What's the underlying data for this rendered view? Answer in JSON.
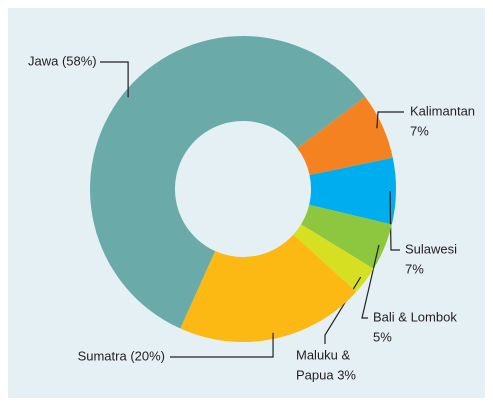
{
  "chart_data": {
    "type": "donut",
    "categories": [
      "Kalimantan",
      "Sulawesi",
      "Bali & Lombok",
      "Maluku & Papua",
      "Sumatra",
      "Jawa"
    ],
    "values": [
      7,
      7,
      5,
      3,
      20,
      58
    ],
    "value_labels": [
      [
        "Kalimantan",
        "7%"
      ],
      [
        "Sulawesi",
        "7%"
      ],
      [
        "Bali & Lombok",
        "5%"
      ],
      [
        "Maluku &",
        "Papua 3%"
      ],
      [
        "Sumatra (20%)"
      ],
      [
        "Jawa (58%)"
      ]
    ],
    "colors": [
      "#f58220",
      "#00aeef",
      "#8dc63f",
      "#d7df23",
      "#fdb913",
      "#6aabaa"
    ]
  }
}
